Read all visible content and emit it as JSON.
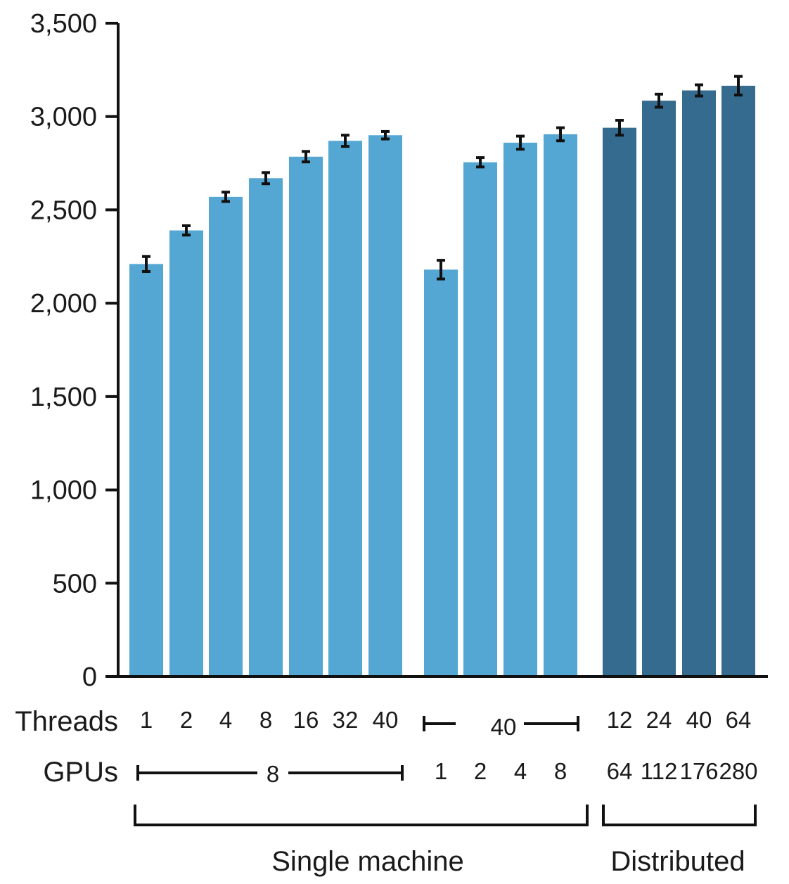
{
  "chart_data": {
    "type": "bar",
    "title": "",
    "xlabel": "",
    "ylabel": "",
    "ylim": [
      0,
      3500
    ],
    "yticks": [
      "0",
      "500",
      "1,000",
      "1,500",
      "2,000",
      "2,500",
      "3,000",
      "3,500"
    ],
    "grid": false,
    "legend": "none",
    "colors": {
      "single": "#54a6d3",
      "distributed": "#356b8f",
      "error": "#111111",
      "axis": "#111111"
    },
    "bars": [
      {
        "value": 2210,
        "err": 40,
        "group": "single"
      },
      {
        "value": 2390,
        "err": 25,
        "group": "single"
      },
      {
        "value": 2570,
        "err": 25,
        "group": "single"
      },
      {
        "value": 2670,
        "err": 30,
        "group": "single"
      },
      {
        "value": 2785,
        "err": 28,
        "group": "single"
      },
      {
        "value": 2870,
        "err": 30,
        "group": "single"
      },
      {
        "value": 2900,
        "err": 20,
        "group": "single"
      },
      {
        "value": 2180,
        "err": 50,
        "group": "single"
      },
      {
        "value": 2755,
        "err": 25,
        "group": "single"
      },
      {
        "value": 2860,
        "err": 35,
        "group": "single"
      },
      {
        "value": 2905,
        "err": 35,
        "group": "single"
      },
      {
        "value": 2940,
        "err": 40,
        "group": "distributed"
      },
      {
        "value": 3085,
        "err": 35,
        "group": "distributed"
      },
      {
        "value": 3140,
        "err": 30,
        "group": "distributed"
      },
      {
        "value": 3165,
        "err": 50,
        "group": "distributed"
      }
    ],
    "rows": {
      "threads_label": "Threads",
      "threads": [
        "1",
        "2",
        "4",
        "8",
        "16",
        "32",
        "40",
        "",
        "",
        "",
        "",
        "12",
        "24",
        "40",
        "64"
      ],
      "threads_bracket": "40",
      "gpus_label": "GPUs",
      "gpus": [
        "",
        "",
        "",
        "",
        "",
        "",
        "",
        "1",
        "2",
        "4",
        "8",
        "64",
        "112",
        "176",
        "280"
      ],
      "gpus_bracket": "8"
    },
    "groups": {
      "single": "Single machine",
      "distributed": "Distributed"
    }
  }
}
